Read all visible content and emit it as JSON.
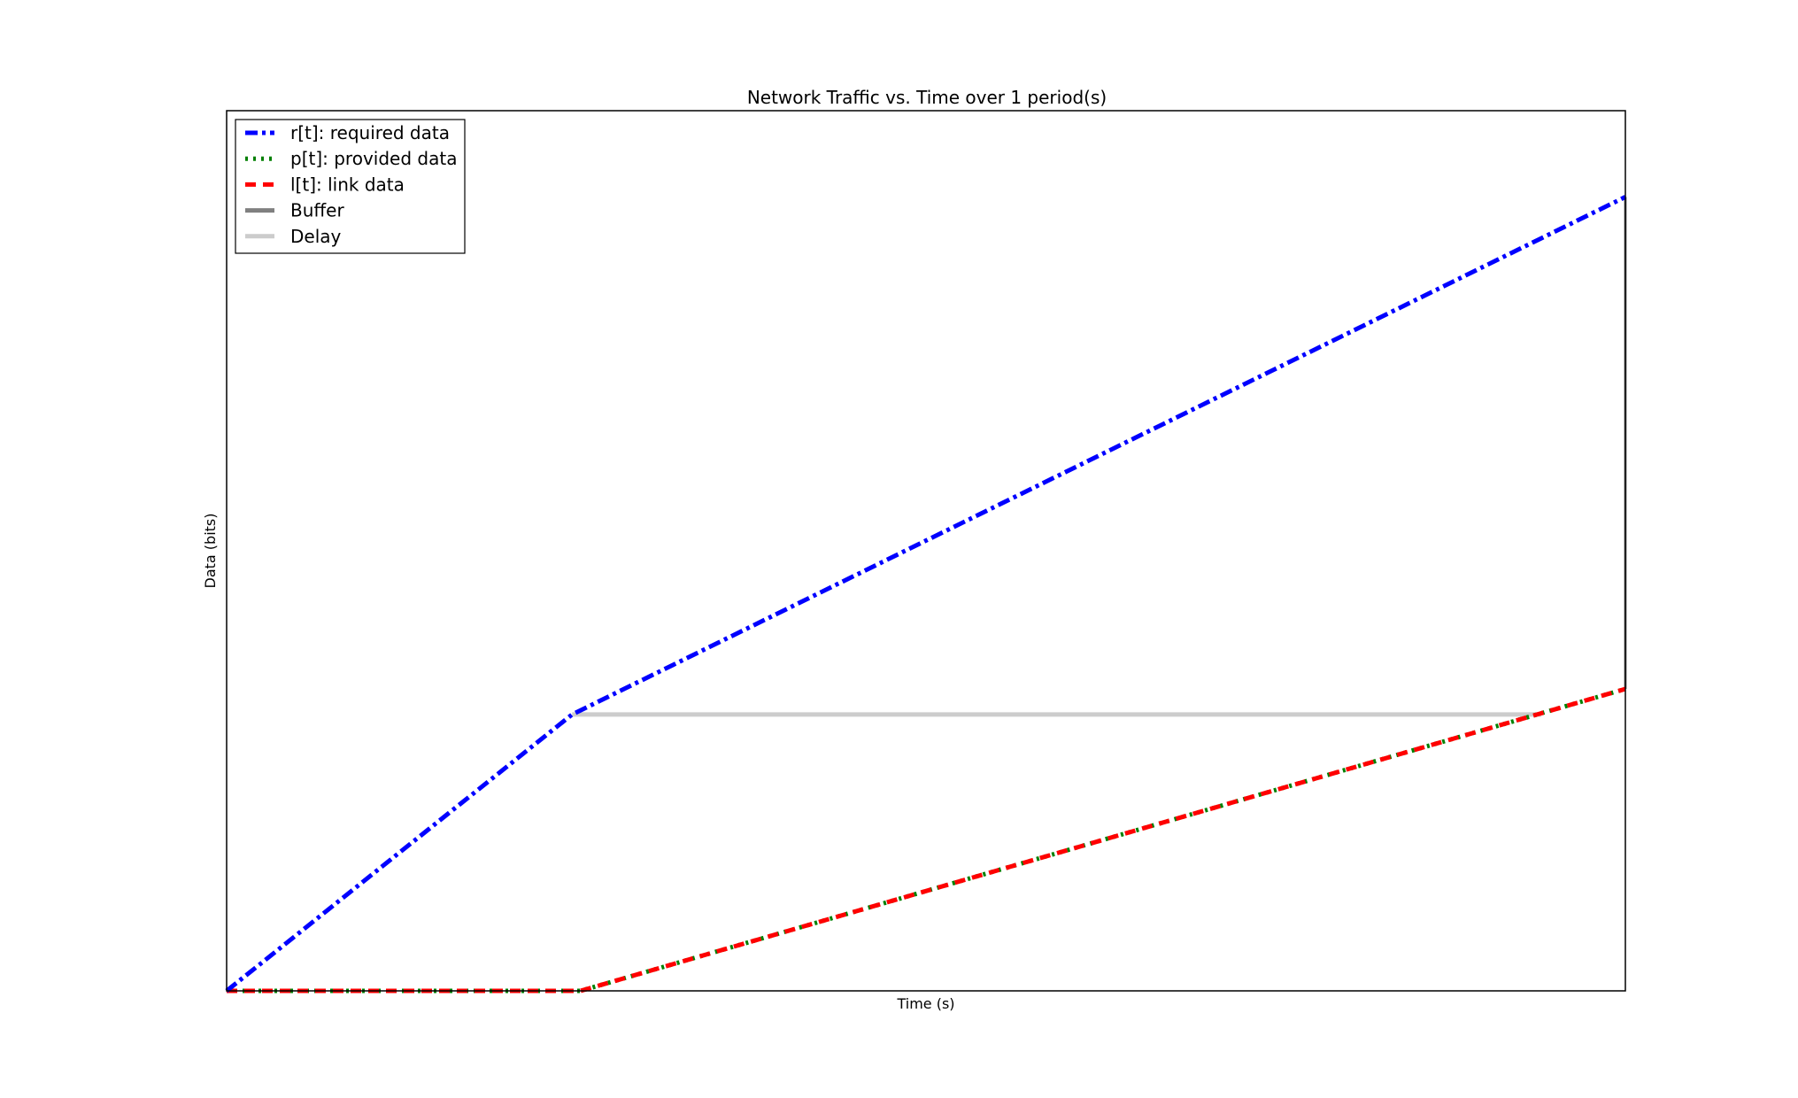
{
  "chart_data": {
    "type": "line",
    "title": "Network Traffic vs. Time over 1 period(s)",
    "xlabel": "Time (s)",
    "ylabel": "Data (bits)",
    "xlim": [
      0,
      1
    ],
    "ylim": [
      0,
      1
    ],
    "grid": false,
    "legend_position": "top-left",
    "series": [
      {
        "name": "r[t]: required data",
        "color": "#0000ff",
        "style": "dashdot",
        "x": [
          0,
          0.247,
          1
        ],
        "y": [
          0,
          0.314,
          0.902
        ]
      },
      {
        "name": "p[t]: provided data",
        "color": "#008000",
        "style": "dotted",
        "x": [
          0,
          0.253,
          1
        ],
        "y": [
          0,
          0,
          0.343
        ]
      },
      {
        "name": "l[t]: link data",
        "color": "#ff0000",
        "style": "dashed",
        "x": [
          0,
          0.253,
          1
        ],
        "y": [
          0,
          0,
          0.343
        ]
      },
      {
        "name": "Buffer",
        "color": "#808080",
        "style": "solid",
        "x": [
          1,
          1
        ],
        "y": [
          0.343,
          0.902
        ]
      },
      {
        "name": "Delay",
        "color": "#cccccc",
        "style": "solid",
        "x": [
          0.247,
          0.94
        ],
        "y": [
          0.314,
          0.314
        ]
      }
    ]
  }
}
